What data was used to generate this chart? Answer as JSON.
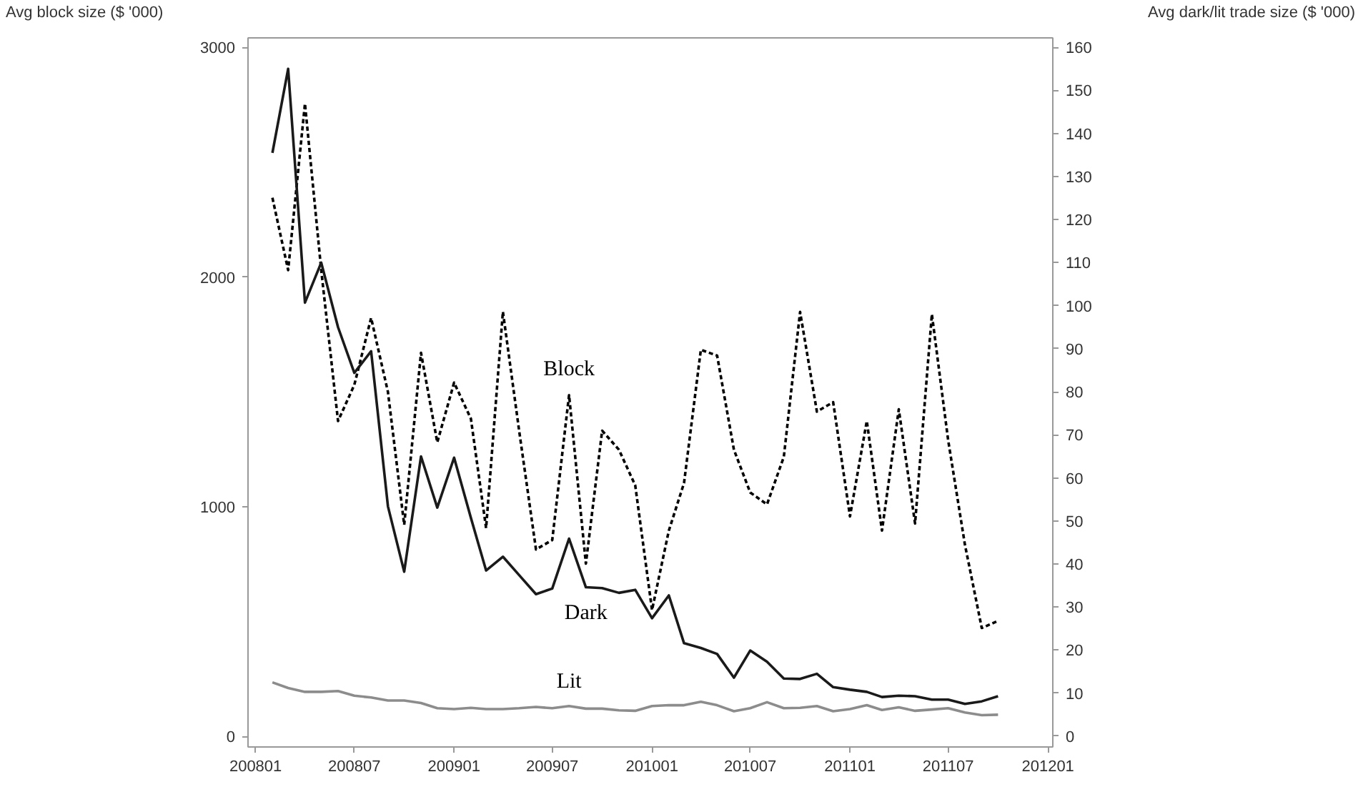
{
  "chart_data": {
    "type": "line",
    "ylabel": "Avg block size ($ '000)",
    "y2label": "Avg dark/lit trade size ($ '000)",
    "x": [
      "2008-02",
      "2008-03",
      "2008-04",
      "2008-05",
      "2008-06",
      "2008-07",
      "2008-08",
      "2008-09",
      "2008-10",
      "2008-11",
      "2008-12",
      "2009-01",
      "2009-02",
      "2009-03",
      "2009-04",
      "2009-05",
      "2009-06",
      "2009-07",
      "2009-08",
      "2009-09",
      "2009-10",
      "2009-11",
      "2009-12",
      "2010-01",
      "2010-02",
      "2010-03",
      "2010-04",
      "2010-05",
      "2010-06",
      "2010-07",
      "2010-08",
      "2010-09",
      "2010-10",
      "2010-11",
      "2010-12",
      "2011-01",
      "2011-02",
      "2011-03",
      "2011-04",
      "2011-05",
      "2011-06",
      "2011-07",
      "2011-08",
      "2011-09",
      "2011-10"
    ],
    "series": [
      {
        "name": "Block",
        "color": "#000000",
        "line_style": "dashed",
        "axis": "y",
        "values": [
          2345,
          2030,
          2755,
          2030,
          1373,
          1530,
          1822,
          1500,
          921,
          1670,
          1280,
          1540,
          1383,
          907,
          1849,
          1330,
          814,
          855,
          1486,
          752,
          1331,
          1248,
          1093,
          550,
          896,
          1103,
          1683,
          1658,
          1248,
          1062,
          1010,
          1217,
          1848,
          1414,
          1455,
          958,
          1373,
          896,
          1424,
          927,
          1838,
          1290,
          834,
          472,
          503
        ]
      },
      {
        "name": "Dark",
        "color": "#1a1a1a",
        "line_style": "solid",
        "axis": "y2",
        "values": [
          135.5,
          155,
          100.7,
          110,
          95,
          84.4,
          89.4,
          53.4,
          38.2,
          65,
          53.1,
          64.7,
          50.7,
          38.5,
          41.7,
          37.4,
          33,
          34.3,
          45.9,
          34.6,
          34.4,
          33.3,
          34,
          27.4,
          32.7,
          21.6,
          20.5,
          19.1,
          13.6,
          19.9,
          17.3,
          13.4,
          13.3,
          14.5,
          11.4,
          10.8,
          10.3,
          9.1,
          9.4,
          9.3,
          8.5,
          8.5,
          7.5,
          8.1,
          9.3
        ]
      },
      {
        "name": "Lit",
        "color": "#8c8c8c",
        "line_style": "solid",
        "axis": "y2",
        "values": [
          12.5,
          11.2,
          10.3,
          10.3,
          10.5,
          9.4,
          9,
          8.3,
          8.3,
          7.7,
          6.5,
          6.3,
          6.6,
          6.3,
          6.3,
          6.5,
          6.8,
          6.5,
          7,
          6.4,
          6.4,
          6,
          5.9,
          7,
          7.2,
          7.2,
          8,
          7.2,
          5.8,
          6.5,
          7.9,
          6.5,
          6.6,
          7,
          5.8,
          6.3,
          7.2,
          6.1,
          6.7,
          5.9,
          6.2,
          6.5,
          5.5,
          4.9,
          5
        ]
      }
    ],
    "xlim": [
      "2007-12-18",
      "2012-01-10"
    ],
    "xticks": [
      {
        "value": "2008-01",
        "label": "200801"
      },
      {
        "value": "2008-07",
        "label": "200807"
      },
      {
        "value": "2009-01",
        "label": "200901"
      },
      {
        "value": "2009-07",
        "label": "200907"
      },
      {
        "value": "2010-01",
        "label": "201001"
      },
      {
        "value": "2010-07",
        "label": "201007"
      },
      {
        "value": "2011-01",
        "label": "201101"
      },
      {
        "value": "2011-07",
        "label": "201107"
      },
      {
        "value": "2012-01",
        "label": "201201"
      }
    ],
    "ylim": [
      -46,
      3041
    ],
    "yticks": [
      0,
      1000,
      2000,
      3000
    ],
    "y2lim": [
      -2.5,
      162.2
    ],
    "y2ticks": [
      0,
      10,
      20,
      30,
      40,
      50,
      60,
      70,
      80,
      90,
      100,
      110,
      120,
      130,
      140,
      150,
      160
    ],
    "grid": false
  }
}
